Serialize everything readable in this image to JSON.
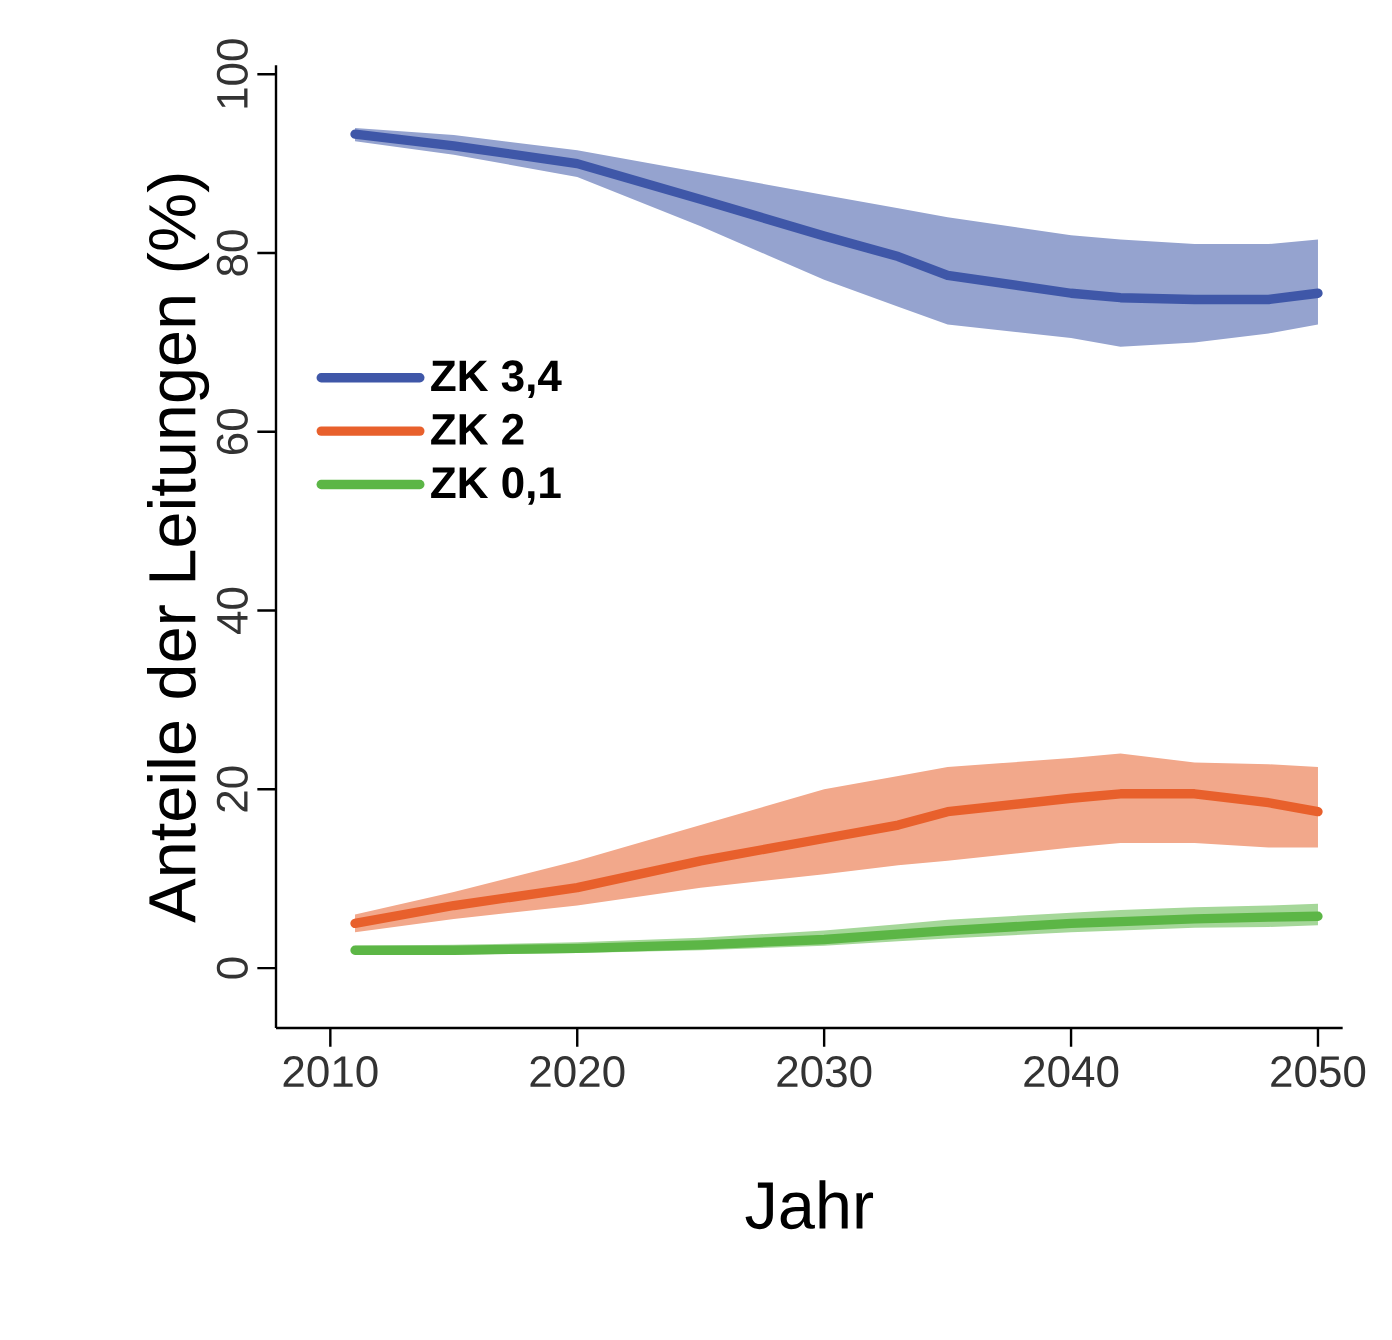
{
  "chart_data": {
    "type": "line",
    "xlabel": "Jahr",
    "ylabel": "Anteile der Leitungen (%)",
    "xlim": [
      2007.8,
      2051
    ],
    "ylim": [
      -6.7,
      101
    ],
    "xticks": [
      2010,
      2020,
      2030,
      2040,
      2050
    ],
    "yticks": [
      0,
      20,
      40,
      60,
      80,
      100
    ],
    "legend": "left",
    "grid": false,
    "line_style": "solid",
    "marker": "none",
    "series": [
      {
        "name": "ZK 3,4",
        "color": "#3f57a8",
        "x": [
          2011,
          2015,
          2020,
          2025,
          2030,
          2033,
          2035,
          2040,
          2042,
          2045,
          2048,
          2050
        ],
        "values": [
          93.3,
          92,
          90,
          86,
          81.9,
          79.6,
          77.5,
          75.5,
          75,
          74.8,
          74.8,
          75.5
        ],
        "upper": [
          94,
          93.2,
          91.5,
          89,
          86.5,
          85,
          84,
          82,
          81.5,
          81,
          81,
          81.5
        ],
        "lower": [
          92.5,
          91,
          88.5,
          83,
          77,
          74,
          72,
          70.5,
          69.5,
          70,
          71,
          72
        ]
      },
      {
        "name": "ZK 2",
        "color": "#e8602c",
        "x": [
          2011,
          2015,
          2020,
          2025,
          2030,
          2033,
          2035,
          2040,
          2042,
          2045,
          2048,
          2050
        ],
        "values": [
          5,
          7,
          9,
          12,
          14.5,
          16,
          17.5,
          19,
          19.5,
          19.5,
          18.5,
          17.5
        ],
        "upper": [
          6,
          8.5,
          12,
          16,
          20,
          21.5,
          22.5,
          23.5,
          24,
          23,
          22.8,
          22.5
        ],
        "lower": [
          4,
          5.5,
          7,
          9,
          10.5,
          11.5,
          12,
          13.5,
          14,
          14,
          13.5,
          13.5
        ]
      },
      {
        "name": "ZK 0,1",
        "color": "#5cb646",
        "x": [
          2011,
          2015,
          2020,
          2025,
          2030,
          2033,
          2035,
          2040,
          2042,
          2045,
          2048,
          2050
        ],
        "values": [
          2,
          2,
          2.2,
          2.6,
          3.2,
          3.8,
          4.2,
          5,
          5.2,
          5.5,
          5.7,
          5.8
        ],
        "upper": [
          2.5,
          2.6,
          2.9,
          3.4,
          4.2,
          4.9,
          5.4,
          6.2,
          6.5,
          6.8,
          7,
          7.2
        ],
        "lower": [
          1.5,
          1.5,
          1.7,
          2,
          2.5,
          3,
          3.3,
          4,
          4.2,
          4.5,
          4.6,
          4.8
        ]
      }
    ]
  }
}
